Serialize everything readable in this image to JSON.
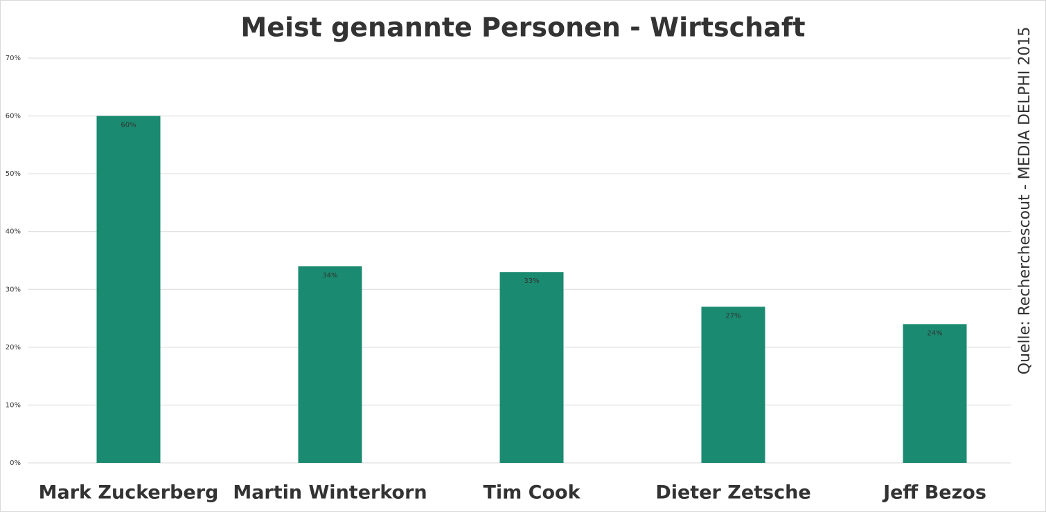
{
  "chart_data": {
    "type": "bar",
    "title": "Meist genannte Personen - Wirtschaft",
    "source": "Quelle: Recherchescout - MEDIA DELPHI 2015",
    "categories": [
      "Mark Zuckerberg",
      "Martin Winterkorn",
      "Tim Cook",
      "Dieter Zetsche",
      "Jeff Bezos"
    ],
    "values": [
      60,
      34,
      33,
      27,
      24
    ],
    "value_labels": [
      "60%",
      "34%",
      "33%",
      "27%",
      "24%"
    ],
    "color": "#1a8a70",
    "ylim": [
      0,
      70
    ],
    "yticks": [
      {
        "value": 0,
        "label": "0%"
      },
      {
        "value": 10,
        "label": "10%"
      },
      {
        "value": 20,
        "label": "20%"
      },
      {
        "value": 30,
        "label": "30%"
      },
      {
        "value": 40,
        "label": "40%"
      },
      {
        "value": 50,
        "label": "50%"
      },
      {
        "value": 60,
        "label": "60%"
      },
      {
        "value": 70,
        "label": "70%"
      }
    ],
    "grid": true
  }
}
